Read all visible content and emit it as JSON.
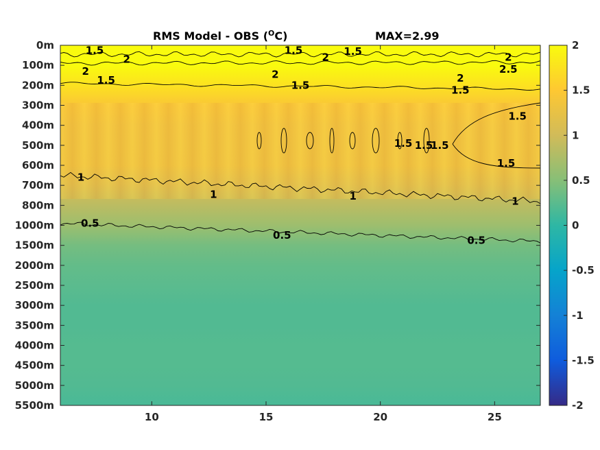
{
  "chart_data": {
    "type": "heatmap",
    "title": "RMS Model - OBS (",
    "title_unit": "C)",
    "title_superscript": "O",
    "max_label": "MAX=2.99",
    "x_ticks": [
      10,
      15,
      20,
      25
    ],
    "x_range": [
      6,
      27
    ],
    "y_tick_labels": [
      "0m",
      "100m",
      "200m",
      "300m",
      "400m",
      "500m",
      "600m",
      "700m",
      "800m",
      "1000m",
      "1500m",
      "2000m",
      "2500m",
      "3000m",
      "3500m",
      "4000m",
      "4500m",
      "5000m",
      "5500m"
    ],
    "colorbar": {
      "range": [
        -2,
        2
      ],
      "ticks": [
        "2",
        "1.5",
        "1",
        "0.5",
        "0",
        "-0.5",
        "-1",
        "-1.5",
        "-2"
      ],
      "colormap": "parula"
    },
    "contour_levels": [
      0.5,
      1,
      1.5,
      2,
      2.5
    ],
    "depth_profile": [
      2.0,
      2.0,
      1.75,
      1.45,
      1.35,
      1.33,
      1.32,
      1.1,
      0.85,
      0.65,
      0.4,
      0.3,
      0.25,
      0.2,
      0.2,
      0.22,
      0.22,
      0.2,
      0.15
    ],
    "contour_labels": [
      {
        "text": "1.5",
        "x": 7.5,
        "depth_index": 0.25
      },
      {
        "text": "2",
        "x": 8.9,
        "depth_index": 0.7
      },
      {
        "text": "1.5",
        "x": 16.2,
        "depth_index": 0.25
      },
      {
        "text": "2",
        "x": 17.6,
        "depth_index": 0.6
      },
      {
        "text": "1.5",
        "x": 18.8,
        "depth_index": 0.3
      },
      {
        "text": "2",
        "x": 25.6,
        "depth_index": 0.6
      },
      {
        "text": "2.5",
        "x": 25.6,
        "depth_index": 1.2
      },
      {
        "text": "2",
        "x": 7.1,
        "depth_index": 1.3
      },
      {
        "text": "2",
        "x": 15.4,
        "depth_index": 1.45
      },
      {
        "text": "2",
        "x": 23.5,
        "depth_index": 1.65
      },
      {
        "text": "1.5",
        "x": 8.0,
        "depth_index": 1.75
      },
      {
        "text": "1.5",
        "x": 16.5,
        "depth_index": 2.0
      },
      {
        "text": "1.5",
        "x": 23.5,
        "depth_index": 2.25
      },
      {
        "text": "1.5",
        "x": 26.0,
        "depth_index": 3.55
      },
      {
        "text": "1.5",
        "x": 25.5,
        "depth_index": 5.9
      },
      {
        "text": "1.5",
        "x": 21.0,
        "depth_index": 4.9
      },
      {
        "text": "1.5",
        "x": 21.9,
        "depth_index": 5.0
      },
      {
        "text": "1.5",
        "x": 22.6,
        "depth_index": 5.0
      },
      {
        "text": "1",
        "x": 6.9,
        "depth_index": 6.6
      },
      {
        "text": "1",
        "x": 12.7,
        "depth_index": 7.45
      },
      {
        "text": "1",
        "x": 18.8,
        "depth_index": 7.55
      },
      {
        "text": "1",
        "x": 25.9,
        "depth_index": 7.8
      },
      {
        "text": "0.5",
        "x": 7.3,
        "depth_index": 8.9
      },
      {
        "text": "0.5",
        "x": 15.7,
        "depth_index": 9.5
      },
      {
        "text": "0.5",
        "x": 24.2,
        "depth_index": 9.75
      }
    ]
  }
}
